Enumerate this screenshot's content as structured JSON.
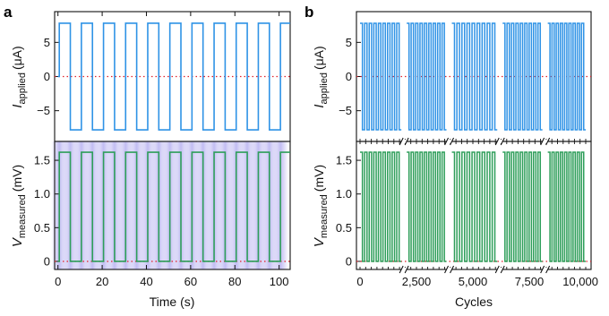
{
  "chart_data": [
    {
      "panel": "a",
      "type": "line",
      "subplots": [
        {
          "name": "current",
          "ylabel_base": "I",
          "ylabel_sub": "applied",
          "ylabel_unit": "(μA)",
          "ylim": [
            -9.5,
            9.5
          ],
          "yticks": [
            -5,
            0,
            5
          ],
          "ytick_labels": [
            "−5",
            "0",
            "5"
          ],
          "reference_line": 0,
          "color": "#2f93e6",
          "waveform": {
            "type": "square",
            "high": 7.8,
            "low": -7.8,
            "start_value": 0,
            "first_rise": 0.6,
            "period": 10,
            "duty_high": 0.5,
            "first_fall": 5.6,
            "end_x": 105
          }
        },
        {
          "name": "voltage",
          "ylabel_base": "V",
          "ylabel_sub": "measured",
          "ylabel_unit": "(mV)",
          "ylim": [
            -0.12,
            1.78
          ],
          "yticks": [
            0,
            0.5,
            1.0,
            1.5
          ],
          "ytick_labels": [
            "0",
            "0.5",
            "1.0",
            "1.5"
          ],
          "reference_line": 0,
          "color": "#2e9e5a",
          "shading_color": "#8f86e8",
          "waveform": {
            "type": "square",
            "high": 1.62,
            "low": 0.0,
            "start_value": 0,
            "first_rise": 0.6,
            "period": 10,
            "duty_high": 0.5,
            "first_fall": 5.6,
            "end_x": 105
          }
        }
      ],
      "x": {
        "label": "Time (s)",
        "lim": [
          -1.5,
          105
        ],
        "ticks": [
          0,
          20,
          40,
          60,
          80,
          100
        ],
        "tick_labels": [
          "0",
          "20",
          "40",
          "60",
          "80",
          "100"
        ]
      }
    },
    {
      "panel": "b",
      "type": "line",
      "subplots": [
        {
          "name": "current",
          "ylabel_base": "I",
          "ylabel_sub": "applied",
          "ylabel_unit": "(μA)",
          "ylim": [
            -9.5,
            9.5
          ],
          "yticks": [
            -5,
            0,
            5
          ],
          "ytick_labels": [
            "−5",
            "0",
            "5"
          ],
          "reference_line": 0,
          "color": "#2f93e6",
          "waveform": {
            "type": "square",
            "high": 7.8,
            "low": -7.8
          }
        },
        {
          "name": "voltage",
          "ylabel_base": "V",
          "ylabel_sub": "measured",
          "ylabel_unit": "(mV)",
          "ylim": [
            -0.12,
            1.78
          ],
          "yticks": [
            0,
            0.5,
            1.0,
            1.5
          ],
          "ytick_labels": [
            "0",
            "0.5",
            "1.0",
            "1.5"
          ],
          "reference_line": 0,
          "color": "#2e9e5a",
          "waveform": {
            "type": "square",
            "high": 1.62,
            "low": 0.0
          }
        }
      ],
      "x": {
        "label": "Cycles",
        "lim": [
          0,
          10000
        ],
        "ticks": [
          0,
          2500,
          5000,
          7500,
          10000
        ],
        "tick_labels": [
          "0",
          "2,500",
          "5,000",
          "7,500",
          "10,000"
        ],
        "axis_breaks": [
          1950,
          3950,
          6200,
          8200
        ],
        "segments": [
          [
            0,
            1950,
            9
          ],
          [
            1950,
            3950,
            9
          ],
          [
            3950,
            6200,
            9
          ],
          [
            6200,
            8200,
            9
          ],
          [
            8200,
            10000,
            9
          ]
        ]
      }
    }
  ],
  "colors": {
    "current": "#2f93e6",
    "voltage": "#2e9e5a",
    "reference": "#e0202a",
    "shading": "#8f86e8"
  }
}
